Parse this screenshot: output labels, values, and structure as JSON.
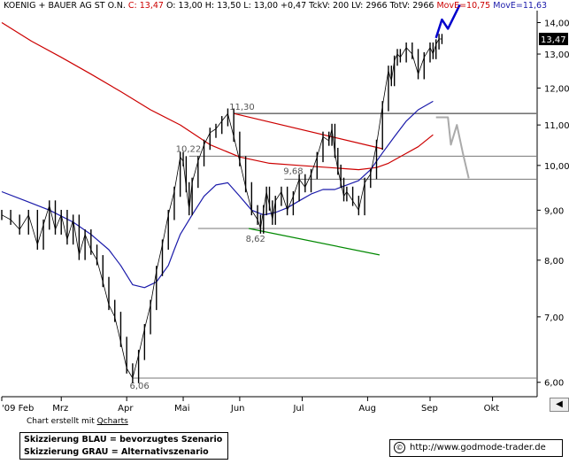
{
  "header": {
    "text": "KOENIG + BAUER AG ST O.N. ",
    "close_label": "C: 13,47",
    "ohlc": " O: 13,00 H: 13,50 L: 13,00 +0,47 TckV: 200 LV: 2966 TotV: 2966 ",
    "ma200_label": "MovE=10,75",
    "ma50_label": "MovE=11,63"
  },
  "footer": {
    "credit_prefix": "Chart erstellt mit ",
    "credit_link": "Qcharts",
    "legend_blue": "Skizzierung BLAU = bevorzugtes Szenario",
    "legend_gray": "Skizzierung GRAU = Alternativszenario",
    "url": "http://www.godmode-trader.de",
    "copyright_symbol": "©"
  },
  "colors": {
    "price": "#000000",
    "ma200": "#cc0000",
    "ma50": "#1a1aaa",
    "resistance": "#cc0000",
    "support": "#008800",
    "level_line": "#777777",
    "blue_scenario": "#0000cc",
    "gray_scenario": "#aaaaaa"
  },
  "chart_data": {
    "type": "line",
    "x_unit": "trading day index (0 = start of Feb 2009)",
    "months": [
      {
        "label": "'09 Feb",
        "x": 0
      },
      {
        "label": "Mrz",
        "x": 20
      },
      {
        "label": "Apr",
        "x": 42
      },
      {
        "label": "Mai",
        "x": 61
      },
      {
        "label": "Jun",
        "x": 80
      },
      {
        "label": "Jul",
        "x": 101
      },
      {
        "label": "Aug",
        "x": 123
      },
      {
        "label": "Sep",
        "x": 144
      },
      {
        "label": "Okt",
        "x": 165
      }
    ],
    "xlim": [
      0,
      180
    ],
    "ylim": [
      5.8,
      14.4
    ],
    "yscale": "log",
    "yticks": [
      6,
      7,
      8,
      9,
      10,
      11,
      12,
      13,
      14
    ],
    "ytick_labels": [
      "6,00",
      "7,00",
      "8,00",
      "9,00",
      "10,00",
      "11,00",
      "12,00",
      "13,00",
      "14,00"
    ],
    "last_price_label": "13,47",
    "last_price": 13.47,
    "series": [
      {
        "name": "Kurs",
        "x": [
          0,
          3,
          6,
          9,
          12,
          14,
          16,
          18,
          20,
          22,
          24,
          26,
          28,
          30,
          32,
          34,
          36,
          38,
          40,
          42,
          44,
          46,
          48,
          50,
          52,
          54,
          56,
          58,
          60,
          61,
          62,
          63,
          64,
          66,
          68,
          70,
          72,
          74,
          76,
          78,
          80,
          82,
          84,
          86,
          87,
          88,
          89,
          90,
          91,
          92,
          94,
          96,
          98,
          100,
          102,
          104,
          106,
          108,
          110,
          111,
          112,
          113,
          114,
          115,
          116,
          118,
          120,
          122,
          124,
          126,
          128,
          130,
          131,
          132,
          133,
          134,
          136,
          138,
          140,
          142,
          144,
          145,
          146,
          147,
          148,
          150,
          152,
          154
        ],
        "values": [
          8.9,
          8.8,
          8.6,
          8.9,
          8.3,
          8.7,
          9.1,
          8.6,
          8.9,
          8.4,
          8.8,
          8.1,
          8.5,
          8.2,
          8.0,
          7.6,
          7.2,
          7.0,
          6.6,
          6.2,
          6.06,
          6.4,
          6.8,
          7.2,
          7.8,
          8.3,
          8.9,
          9.4,
          10.2,
          10.1,
          9.5,
          9.0,
          9.6,
          10.1,
          10.5,
          10.8,
          10.9,
          11.1,
          11.3,
          10.7,
          10.1,
          9.5,
          9.0,
          8.8,
          8.62,
          9.0,
          9.4,
          9.1,
          8.8,
          9.2,
          9.4,
          9.0,
          9.3,
          9.68,
          9.5,
          9.8,
          10.2,
          10.7,
          10.6,
          10.9,
          10.3,
          9.9,
          9.6,
          9.3,
          9.4,
          9.2,
          9.0,
          9.6,
          9.8,
          10.5,
          11.5,
          12.5,
          12.2,
          12.8,
          13.0,
          12.9,
          13.2,
          13.0,
          12.4,
          12.9,
          13.2,
          13.0,
          13.3,
          13.47,
          13.47,
          null,
          null,
          null
        ]
      },
      {
        "name": "MovE=10,75",
        "x": [
          0,
          10,
          20,
          30,
          40,
          50,
          60,
          70,
          80,
          90,
          100,
          110,
          120,
          126,
          130,
          135,
          140,
          145
        ],
        "values": [
          14.0,
          13.4,
          12.9,
          12.4,
          11.9,
          11.4,
          11.0,
          10.5,
          10.2,
          10.05,
          10.0,
          9.95,
          9.9,
          9.95,
          10.05,
          10.25,
          10.45,
          10.75
        ]
      },
      {
        "name": "MovE=11,63",
        "x": [
          0,
          8,
          16,
          24,
          30,
          36,
          40,
          44,
          48,
          52,
          56,
          58,
          60,
          64,
          68,
          72,
          76,
          80,
          84,
          88,
          92,
          96,
          100,
          104,
          108,
          112,
          116,
          120,
          124,
          128,
          132,
          136,
          140,
          145
        ],
        "values": [
          9.4,
          9.2,
          9.0,
          8.75,
          8.5,
          8.2,
          7.9,
          7.55,
          7.5,
          7.6,
          7.9,
          8.2,
          8.5,
          8.9,
          9.3,
          9.55,
          9.6,
          9.3,
          9.0,
          8.9,
          8.95,
          9.05,
          9.2,
          9.35,
          9.45,
          9.45,
          9.55,
          9.65,
          9.9,
          10.3,
          10.7,
          11.1,
          11.4,
          11.63
        ]
      }
    ],
    "levels": [
      {
        "label": "11,30",
        "value": 11.3
      },
      {
        "label": "10,22",
        "value": 10.22
      },
      {
        "label": "9,68",
        "value": 9.68
      },
      {
        "label": "8,62",
        "value": 8.62
      },
      {
        "label": "6,06",
        "value": 6.06
      }
    ],
    "trendlines": [
      {
        "name": "resistance",
        "x": [
          78,
          128
        ],
        "values": [
          11.3,
          10.4
        ]
      },
      {
        "name": "support",
        "x": [
          83,
          127
        ],
        "values": [
          8.62,
          8.1
        ]
      }
    ],
    "scenario_blue": {
      "x": [
        146,
        148,
        150,
        154
      ],
      "values": [
        13.5,
        14.1,
        13.8,
        14.6
      ]
    },
    "scenario_gray": {
      "x": [
        146,
        150,
        151,
        153,
        155,
        157
      ],
      "values": [
        11.2,
        11.2,
        10.5,
        11.0,
        10.3,
        9.7
      ]
    }
  }
}
